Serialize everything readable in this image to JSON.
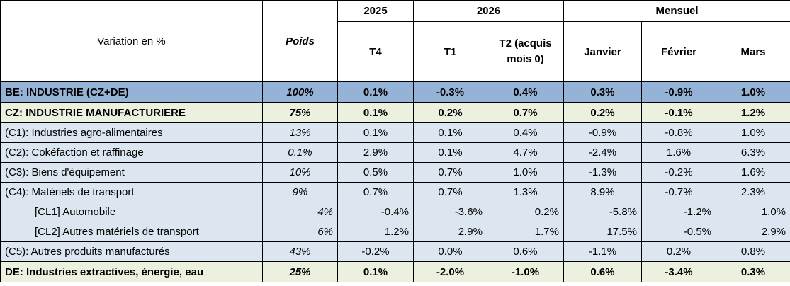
{
  "header": {
    "variation_label": "Variation en %",
    "poids_label": "Poids",
    "year_2025": "2025",
    "year_2026": "2026",
    "mensuel": "Mensuel",
    "t4": "T4",
    "t1": "T1",
    "t2_line1": "T2 (acquis",
    "t2_line2": "mois 0)",
    "janvier": "Janvier",
    "fevrier": "Février",
    "mars": "Mars"
  },
  "rows": [
    {
      "label": "BE: INDUSTRIE (CZ+DE)",
      "poids": "100%",
      "t4": "0.1%",
      "t1": "-0.3%",
      "t2": "0.4%",
      "jan": "0.3%",
      "feb": "-0.9%",
      "mar": "1.0%"
    },
    {
      "label": "CZ: INDUSTRIE MANUFACTURIERE",
      "poids": "75%",
      "t4": "0.1%",
      "t1": "0.2%",
      "t2": "0.7%",
      "jan": "0.2%",
      "feb": "-0.1%",
      "mar": "1.2%"
    },
    {
      "label": "(C1): Industries agro-alimentaires",
      "poids": "13%",
      "t4": "0.1%",
      "t1": "0.1%",
      "t2": "0.4%",
      "jan": "-0.9%",
      "feb": "-0.8%",
      "mar": "1.0%"
    },
    {
      "label": "(C2): Cokéfaction et raffinage",
      "poids": "0.1%",
      "t4": "2.9%",
      "t1": "0.1%",
      "t2": "4.7%",
      "jan": "-2.4%",
      "feb": "1.6%",
      "mar": "6.3%"
    },
    {
      "label": "(C3): Biens d'équipement",
      "poids": "10%",
      "t4": "0.5%",
      "t1": "0.7%",
      "t2": "1.0%",
      "jan": "-1.3%",
      "feb": "-0.2%",
      "mar": "1.6%"
    },
    {
      "label": "(C4): Matériels de transport",
      "poids": "9%",
      "t4": "0.7%",
      "t1": "0.7%",
      "t2": "1.3%",
      "jan": "8.9%",
      "feb": "-0.7%",
      "mar": "2.3%"
    },
    {
      "label": "[CL1] Automobile",
      "poids": "4%",
      "t4": "-0.4%",
      "t1": "-3.6%",
      "t2": "0.2%",
      "jan": "-5.8%",
      "feb": "-1.2%",
      "mar": "1.0%"
    },
    {
      "label": "[CL2] Autres matériels de transport",
      "poids": "6%",
      "t4": "1.2%",
      "t1": "2.9%",
      "t2": "1.7%",
      "jan": "17.5%",
      "feb": "-0.5%",
      "mar": "2.9%"
    },
    {
      "label": "(C5): Autres produits manufacturés",
      "poids": "43%",
      "t4": "-0.2%",
      "t1": "0.0%",
      "t2": "0.6%",
      "jan": "-1.1%",
      "feb": "0.2%",
      "mar": "0.8%"
    },
    {
      "label": "DE: Industries extractives, énergie, eau",
      "poids": "25%",
      "t4": "0.1%",
      "t1": "-2.0%",
      "t2": "-1.0%",
      "jan": "0.6%",
      "feb": "-3.4%",
      "mar": "0.3%"
    }
  ]
}
